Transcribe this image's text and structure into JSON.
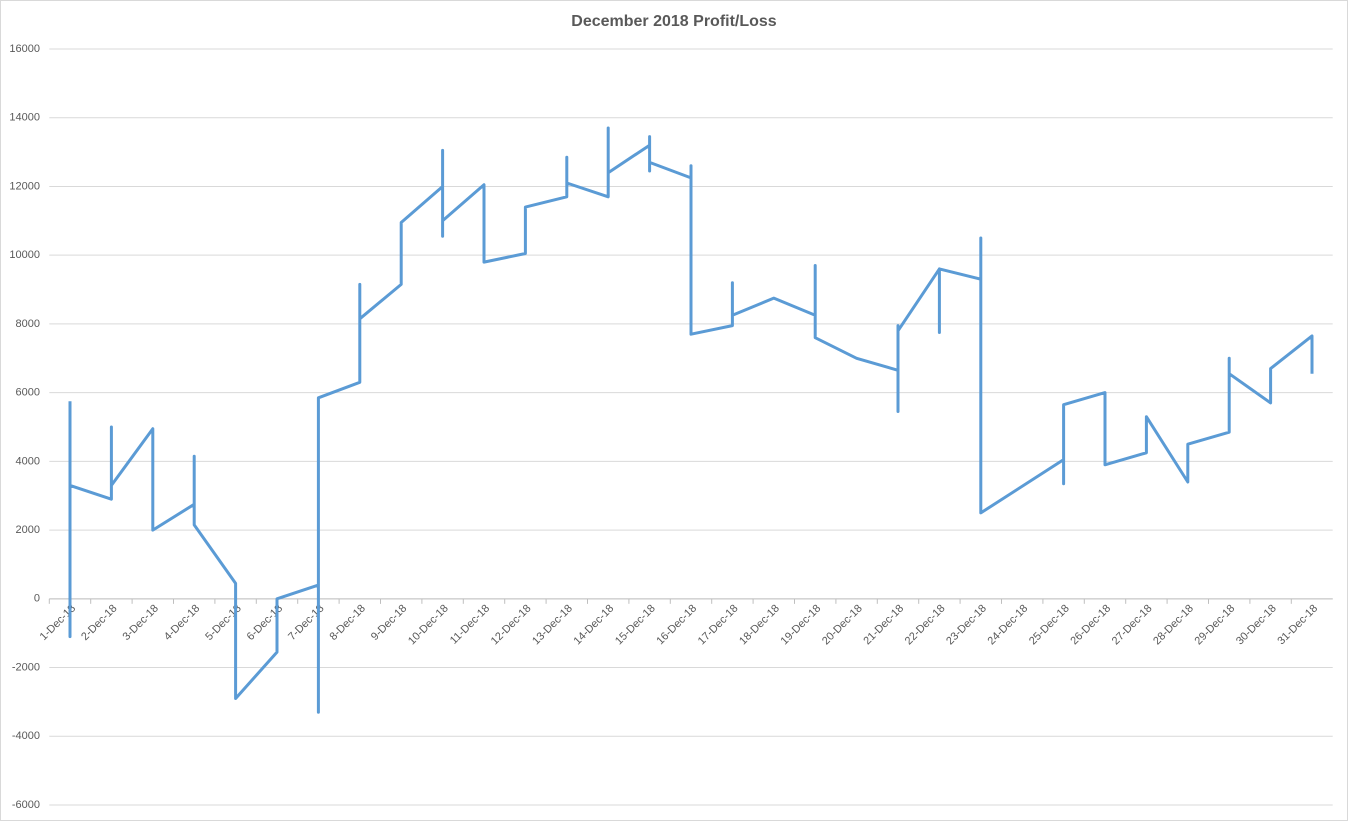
{
  "chart_data": {
    "type": "line",
    "title": "December 2018 Profit/Loss",
    "categories": [
      "1-Dec-18",
      "2-Dec-18",
      "3-Dec-18",
      "4-Dec-18",
      "5-Dec-18",
      "6-Dec-18",
      "7-Dec-18",
      "8-Dec-18",
      "9-Dec-18",
      "10-Dec-18",
      "11-Dec-18",
      "12-Dec-18",
      "13-Dec-18",
      "14-Dec-18",
      "15-Dec-18",
      "16-Dec-18",
      "17-Dec-18",
      "18-Dec-18",
      "19-Dec-18",
      "20-Dec-18",
      "21-Dec-18",
      "22-Dec-18",
      "23-Dec-18",
      "24-Dec-18",
      "25-Dec-18",
      "26-Dec-18",
      "27-Dec-18",
      "28-Dec-18",
      "29-Dec-18",
      "30-Dec-18",
      "31-Dec-18"
    ],
    "x": [
      "1-Dec-18",
      "1-Dec-18",
      "1-Dec-18",
      "2-Dec-18",
      "2-Dec-18",
      "2-Dec-18",
      "3-Dec-18",
      "3-Dec-18",
      "4-Dec-18",
      "4-Dec-18",
      "4-Dec-18",
      "5-Dec-18",
      "5-Dec-18",
      "6-Dec-18",
      "6-Dec-18",
      "7-Dec-18",
      "7-Dec-18",
      "7-Dec-18",
      "8-Dec-18",
      "8-Dec-18",
      "8-Dec-18",
      "9-Dec-18",
      "9-Dec-18",
      "10-Dec-18",
      "10-Dec-18",
      "10-Dec-18",
      "10-Dec-18",
      "11-Dec-18",
      "11-Dec-18",
      "12-Dec-18",
      "12-Dec-18",
      "13-Dec-18",
      "13-Dec-18",
      "13-Dec-18",
      "14-Dec-18",
      "14-Dec-18",
      "14-Dec-18",
      "15-Dec-18",
      "15-Dec-18",
      "15-Dec-18",
      "15-Dec-18",
      "16-Dec-18",
      "16-Dec-18",
      "16-Dec-18",
      "17-Dec-18",
      "17-Dec-18",
      "17-Dec-18",
      "18-Dec-18",
      "19-Dec-18",
      "19-Dec-18",
      "19-Dec-18",
      "20-Dec-18",
      "21-Dec-18",
      "21-Dec-18",
      "21-Dec-18",
      "21-Dec-18",
      "22-Dec-18",
      "22-Dec-18",
      "22-Dec-18",
      "23-Dec-18",
      "23-Dec-18",
      "23-Dec-18",
      "25-Dec-18",
      "25-Dec-18",
      "25-Dec-18",
      "26-Dec-18",
      "26-Dec-18",
      "27-Dec-18",
      "27-Dec-18",
      "28-Dec-18",
      "28-Dec-18",
      "29-Dec-18",
      "29-Dec-18",
      "29-Dec-18",
      "30-Dec-18",
      "30-Dec-18",
      "31-Dec-18",
      "31-Dec-18"
    ],
    "series": [
      {
        "color": "#5b9bd5",
        "values": [
          5750,
          -1100,
          3300,
          2900,
          5000,
          3300,
          4950,
          2000,
          2750,
          4150,
          2150,
          450,
          -2900,
          -1550,
          0,
          400,
          -3300,
          5850,
          6300,
          9150,
          8150,
          9150,
          10950,
          12000,
          13050,
          10550,
          11000,
          12050,
          9800,
          10050,
          11400,
          11700,
          12850,
          12100,
          11700,
          13700,
          12400,
          13200,
          13450,
          12450,
          12700,
          12250,
          12600,
          7700,
          7950,
          9200,
          8250,
          8750,
          8250,
          9700,
          7600,
          7000,
          6650,
          5450,
          7950,
          7800,
          9600,
          7750,
          9600,
          9300,
          10500,
          2500,
          4050,
          3350,
          5650,
          6000,
          3900,
          4250,
          5300,
          3400,
          4500,
          4850,
          7000,
          6550,
          5700,
          6700,
          7650,
          6550
        ]
      }
    ],
    "ylim": [
      -6000,
      16000
    ],
    "yticks": [
      -6000,
      -4000,
      -2000,
      0,
      2000,
      4000,
      6000,
      8000,
      10000,
      12000,
      14000,
      16000
    ],
    "grid": true
  }
}
